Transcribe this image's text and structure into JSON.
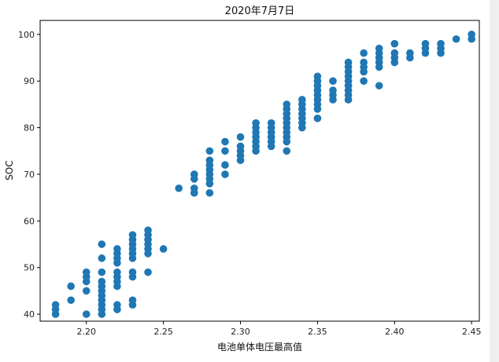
{
  "chart_data": {
    "type": "scatter",
    "title": "2020年7月7日",
    "xlabel": "电池单体电压最高值",
    "ylabel": "SOC",
    "xlim": [
      2.17,
      2.455
    ],
    "ylim": [
      38.5,
      103
    ],
    "x_ticks": [
      2.2,
      2.25,
      2.3,
      2.35,
      2.4,
      2.45
    ],
    "x_tick_labels": [
      "2.20",
      "2.25",
      "2.30",
      "2.35",
      "2.40",
      "2.45"
    ],
    "y_ticks": [
      40,
      50,
      60,
      70,
      80,
      90,
      100
    ],
    "y_tick_labels": [
      "40",
      "50",
      "60",
      "70",
      "80",
      "90",
      "100"
    ],
    "grid": false,
    "legend": "none",
    "marker_color": "#1f77b4",
    "points": [
      [
        2.18,
        40
      ],
      [
        2.18,
        41
      ],
      [
        2.18,
        42
      ],
      [
        2.19,
        43
      ],
      [
        2.19,
        46
      ],
      [
        2.2,
        40
      ],
      [
        2.2,
        45
      ],
      [
        2.2,
        47
      ],
      [
        2.2,
        48
      ],
      [
        2.2,
        49
      ],
      [
        2.21,
        40
      ],
      [
        2.21,
        41
      ],
      [
        2.21,
        42
      ],
      [
        2.21,
        43
      ],
      [
        2.21,
        44
      ],
      [
        2.21,
        45
      ],
      [
        2.21,
        46
      ],
      [
        2.21,
        47
      ],
      [
        2.21,
        49
      ],
      [
        2.21,
        52
      ],
      [
        2.21,
        55
      ],
      [
        2.22,
        41
      ],
      [
        2.22,
        42
      ],
      [
        2.22,
        46
      ],
      [
        2.22,
        47
      ],
      [
        2.22,
        48
      ],
      [
        2.22,
        49
      ],
      [
        2.22,
        51
      ],
      [
        2.22,
        52
      ],
      [
        2.22,
        53
      ],
      [
        2.22,
        54
      ],
      [
        2.23,
        42
      ],
      [
        2.23,
        43
      ],
      [
        2.23,
        48
      ],
      [
        2.23,
        49
      ],
      [
        2.23,
        52
      ],
      [
        2.23,
        53
      ],
      [
        2.23,
        54
      ],
      [
        2.23,
        55
      ],
      [
        2.23,
        56
      ],
      [
        2.23,
        57
      ],
      [
        2.24,
        49
      ],
      [
        2.24,
        53
      ],
      [
        2.24,
        54
      ],
      [
        2.24,
        55
      ],
      [
        2.24,
        56
      ],
      [
        2.24,
        57
      ],
      [
        2.24,
        58
      ],
      [
        2.25,
        54
      ],
      [
        2.26,
        67
      ],
      [
        2.27,
        66
      ],
      [
        2.27,
        67
      ],
      [
        2.27,
        69
      ],
      [
        2.27,
        70
      ],
      [
        2.28,
        66
      ],
      [
        2.28,
        68
      ],
      [
        2.28,
        69
      ],
      [
        2.28,
        70
      ],
      [
        2.28,
        71
      ],
      [
        2.28,
        72
      ],
      [
        2.28,
        73
      ],
      [
        2.28,
        75
      ],
      [
        2.29,
        70
      ],
      [
        2.29,
        72
      ],
      [
        2.29,
        75
      ],
      [
        2.29,
        77
      ],
      [
        2.3,
        73
      ],
      [
        2.3,
        74
      ],
      [
        2.3,
        75
      ],
      [
        2.3,
        76
      ],
      [
        2.3,
        78
      ],
      [
        2.31,
        75
      ],
      [
        2.31,
        76
      ],
      [
        2.31,
        77
      ],
      [
        2.31,
        78
      ],
      [
        2.31,
        79
      ],
      [
        2.31,
        80
      ],
      [
        2.31,
        81
      ],
      [
        2.32,
        76
      ],
      [
        2.32,
        77
      ],
      [
        2.32,
        78
      ],
      [
        2.32,
        79
      ],
      [
        2.32,
        80
      ],
      [
        2.32,
        81
      ],
      [
        2.33,
        75
      ],
      [
        2.33,
        77
      ],
      [
        2.33,
        78
      ],
      [
        2.33,
        79
      ],
      [
        2.33,
        80
      ],
      [
        2.33,
        81
      ],
      [
        2.33,
        82
      ],
      [
        2.33,
        83
      ],
      [
        2.33,
        84
      ],
      [
        2.33,
        85
      ],
      [
        2.34,
        80
      ],
      [
        2.34,
        81
      ],
      [
        2.34,
        82
      ],
      [
        2.34,
        83
      ],
      [
        2.34,
        84
      ],
      [
        2.34,
        85
      ],
      [
        2.34,
        86
      ],
      [
        2.35,
        82
      ],
      [
        2.35,
        84
      ],
      [
        2.35,
        85
      ],
      [
        2.35,
        86
      ],
      [
        2.35,
        87
      ],
      [
        2.35,
        88
      ],
      [
        2.35,
        89
      ],
      [
        2.35,
        90
      ],
      [
        2.35,
        91
      ],
      [
        2.36,
        86
      ],
      [
        2.36,
        87
      ],
      [
        2.36,
        88
      ],
      [
        2.36,
        90
      ],
      [
        2.37,
        86
      ],
      [
        2.37,
        87
      ],
      [
        2.37,
        88
      ],
      [
        2.37,
        89
      ],
      [
        2.37,
        90
      ],
      [
        2.37,
        91
      ],
      [
        2.37,
        92
      ],
      [
        2.37,
        93
      ],
      [
        2.37,
        94
      ],
      [
        2.38,
        90
      ],
      [
        2.38,
        92
      ],
      [
        2.38,
        93
      ],
      [
        2.38,
        94
      ],
      [
        2.38,
        96
      ],
      [
        2.39,
        89
      ],
      [
        2.39,
        93
      ],
      [
        2.39,
        94
      ],
      [
        2.39,
        95
      ],
      [
        2.39,
        96
      ],
      [
        2.39,
        97
      ],
      [
        2.4,
        94
      ],
      [
        2.4,
        95
      ],
      [
        2.4,
        96
      ],
      [
        2.4,
        98
      ],
      [
        2.41,
        95
      ],
      [
        2.41,
        96
      ],
      [
        2.42,
        96
      ],
      [
        2.42,
        97
      ],
      [
        2.42,
        98
      ],
      [
        2.43,
        96
      ],
      [
        2.43,
        97
      ],
      [
        2.43,
        98
      ],
      [
        2.44,
        99
      ],
      [
        2.45,
        99
      ],
      [
        2.45,
        100
      ]
    ]
  }
}
